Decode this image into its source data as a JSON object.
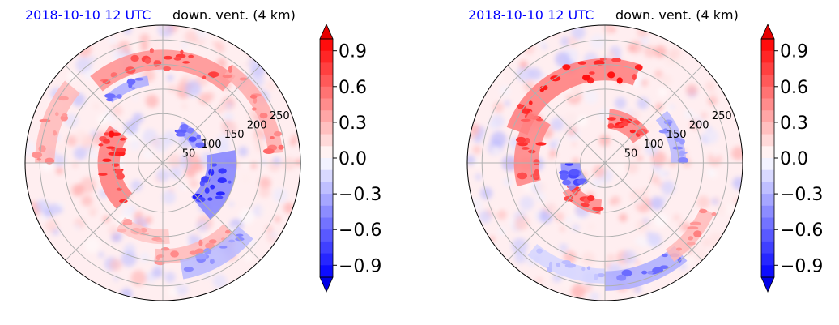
{
  "colors": {
    "positive": "#ff0000",
    "negative": "#0000ff",
    "neutral": "#ffffff",
    "grid": "#b0b0b0"
  },
  "chart_data": [
    {
      "type": "heatmap",
      "projection": "polar",
      "title_left": "2018-10-10 12 UTC",
      "title_right": "down. vent. (4 km)",
      "radial_ticks": [
        50,
        100,
        150,
        200,
        250
      ],
      "rmax": 280,
      "grid": true,
      "colorbar": {
        "min": -1.0,
        "max": 1.0,
        "ticks": [
          -0.9,
          -0.6,
          -0.3,
          0.0,
          0.3,
          0.6,
          0.9
        ],
        "tick_labels": [
          "−0.9",
          "−0.6",
          "−0.3",
          "0.0",
          "0.3",
          "0.6",
          "0.9"
        ],
        "extend": "both",
        "levels": 20
      },
      "features": [
        {
          "kind": "arc",
          "center_angle_deg": 185,
          "width_deg": 80,
          "radius": 110,
          "thickness": 45,
          "value": 0.95
        },
        {
          "kind": "arc",
          "center_angle_deg": 90,
          "width_deg": 80,
          "radius": 210,
          "thickness": 40,
          "value": 0.8
        },
        {
          "kind": "arc",
          "center_angle_deg": 30,
          "width_deg": 50,
          "radius": 230,
          "thickness": 30,
          "value": 0.6
        },
        {
          "kind": "arc",
          "center_angle_deg": 160,
          "width_deg": 40,
          "radius": 240,
          "thickness": 40,
          "value": 0.5
        },
        {
          "kind": "arc",
          "center_angle_deg": 290,
          "width_deg": 50,
          "radius": 190,
          "thickness": 30,
          "value": 0.5
        },
        {
          "kind": "arc",
          "center_angle_deg": 340,
          "width_deg": 60,
          "radius": 120,
          "thickness": 60,
          "value": -0.9
        },
        {
          "kind": "arc",
          "center_angle_deg": 300,
          "width_deg": 40,
          "radius": 220,
          "thickness": 40,
          "value": -0.5
        },
        {
          "kind": "arc",
          "center_angle_deg": 115,
          "width_deg": 30,
          "radius": 170,
          "thickness": 20,
          "value": -0.6
        },
        {
          "kind": "arc",
          "center_angle_deg": 255,
          "width_deg": 40,
          "radius": 150,
          "thickness": 30,
          "value": 0.4
        },
        {
          "kind": "arc",
          "center_angle_deg": 45,
          "width_deg": 40,
          "radius": 80,
          "thickness": 25,
          "value": -0.7
        }
      ]
    },
    {
      "type": "heatmap",
      "projection": "polar",
      "title_left": "2018-10-10 12 UTC",
      "title_right": "down. vent. (4 km)",
      "radial_ticks": [
        50,
        100,
        150,
        200,
        250
      ],
      "rmax": 280,
      "grid": true,
      "colorbar": {
        "min": -1.0,
        "max": 1.0,
        "ticks": [
          -0.9,
          -0.6,
          -0.3,
          0.0,
          0.3,
          0.6,
          0.9
        ],
        "tick_labels": [
          "−0.9",
          "−0.6",
          "−0.3",
          "0.0",
          "0.3",
          "0.6",
          "0.9"
        ],
        "extend": "both",
        "levels": 20
      },
      "features": [
        {
          "kind": "arc",
          "center_angle_deg": 115,
          "width_deg": 90,
          "radius": 190,
          "thickness": 45,
          "value": 0.95
        },
        {
          "kind": "arc",
          "center_angle_deg": 60,
          "width_deg": 50,
          "radius": 90,
          "thickness": 40,
          "value": 0.9
        },
        {
          "kind": "arc",
          "center_angle_deg": 170,
          "width_deg": 50,
          "radius": 160,
          "thickness": 50,
          "value": 0.9
        },
        {
          "kind": "arc",
          "center_angle_deg": 240,
          "width_deg": 50,
          "radius": 90,
          "thickness": 30,
          "value": 0.85
        },
        {
          "kind": "arc",
          "center_angle_deg": 200,
          "width_deg": 40,
          "radius": 70,
          "thickness": 40,
          "value": -0.8
        },
        {
          "kind": "arc",
          "center_angle_deg": 290,
          "width_deg": 40,
          "radius": 240,
          "thickness": 40,
          "value": -0.6
        },
        {
          "kind": "arc",
          "center_angle_deg": 320,
          "width_deg": 30,
          "radius": 230,
          "thickness": 30,
          "value": 0.5
        },
        {
          "kind": "arc",
          "center_angle_deg": 250,
          "width_deg": 40,
          "radius": 230,
          "thickness": 30,
          "value": -0.3
        },
        {
          "kind": "arc",
          "center_angle_deg": 20,
          "width_deg": 40,
          "radius": 150,
          "thickness": 30,
          "value": -0.5
        }
      ]
    }
  ]
}
